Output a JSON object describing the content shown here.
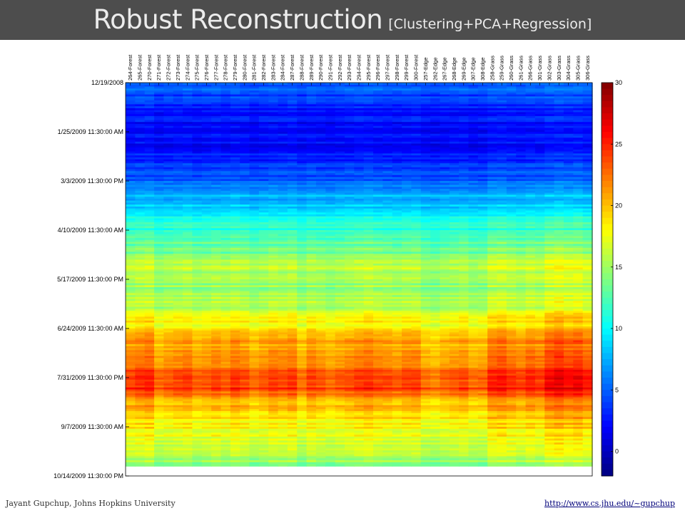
{
  "slide": {
    "title": "Robust Reconstruction",
    "subtitle": "[Clustering+PCA+Regression]",
    "author": "Jayant Gupchup, Johns Hopkins University",
    "url": "http://www.cs.jhu.edu/~gupchup"
  },
  "colors": {
    "title_bar": "#4d4d4d",
    "title_text": "#ececec",
    "link": "#00007a"
  },
  "chart_data": {
    "type": "heatmap",
    "title": "",
    "colormap": "jet",
    "colorbar": {
      "range": [
        -2,
        30
      ],
      "ticks": [
        0,
        5,
        10,
        15,
        20,
        25,
        30
      ]
    },
    "columns": [
      "264-Forest",
      "265-Forest",
      "270-Forest",
      "271-Forest",
      "272-Forest",
      "273-Forest",
      "274-Forest",
      "275-Forest",
      "276-Forest",
      "277-Forest",
      "278-Forest",
      "279-Forest",
      "280-Forest",
      "281-Forest",
      "282-Forest",
      "283-Forest",
      "284-Forest",
      "287-Forest",
      "288-Forest",
      "289-Forest",
      "290-Forest",
      "291-Forest",
      "292-Forest",
      "293-Forest",
      "294-Forest",
      "295-Forest",
      "296-Forest",
      "297-Forest",
      "298-Forest",
      "299-Forest",
      "300-Forest",
      "257-Edge",
      "262-Edge",
      "267-Edge",
      "268-Edge",
      "269-Edge",
      "307-Edge",
      "308-Edge",
      "258-Grass",
      "259-Grass",
      "260-Grass",
      "261-Grass",
      "266-Grass",
      "301-Grass",
      "302-Grass",
      "303-Grass",
      "304-Grass",
      "305-Grass",
      "306-Grass"
    ],
    "y_tick_labels": [
      "12/19/2008",
      "1/25/2009 11:30:00 AM",
      "3/3/2009 11:30:00 PM",
      "4/10/2009 11:30:00 AM",
      "5/17/2009 11:30:00 PM",
      "6/24/2009 11:30:00 AM",
      "7/31/2009 11:30:00 PM",
      "9/7/2009 11:30:00 AM",
      "10/14/2009 11:30:00 PM"
    ],
    "row_profile": {
      "t": [
        0.0,
        0.025,
        0.06,
        0.13,
        0.18,
        0.24,
        0.29,
        0.33,
        0.37,
        0.42,
        0.46,
        0.52,
        0.58,
        0.63,
        0.66,
        0.69,
        0.72,
        0.75,
        0.78,
        0.81,
        0.85,
        0.89,
        0.93,
        0.975
      ],
      "value": [
        4.8,
        4.2,
        2.8,
        1.8,
        2.2,
        4.5,
        7.5,
        9.5,
        11.5,
        13.0,
        15.5,
        14.5,
        16.0,
        19.0,
        20.5,
        21.0,
        22.0,
        23.0,
        24.0,
        20.5,
        18.5,
        17.0,
        16.0,
        14.5
      ]
    },
    "column_offsets": [
      0.3,
      0.6,
      0.8,
      -0.3,
      0,
      0.2,
      0.4,
      -0.2,
      0,
      0.3,
      0,
      0.5,
      0.2,
      -0.3,
      0,
      0.4,
      0.2,
      0.5,
      -0.4,
      0.3,
      0,
      -0.3,
      0,
      0.2,
      0.4,
      0.6,
      0.3,
      0.2,
      0,
      0.3,
      0.4,
      -0.4,
      -0.6,
      -0.2,
      0,
      0.2,
      -0.3,
      -0.2,
      0.8,
      1.0,
      0.6,
      0.3,
      0.7,
      0.5,
      1.3,
      1.6,
      1.2,
      1.4,
      0.9
    ],
    "data_end_fraction": 0.975
  }
}
